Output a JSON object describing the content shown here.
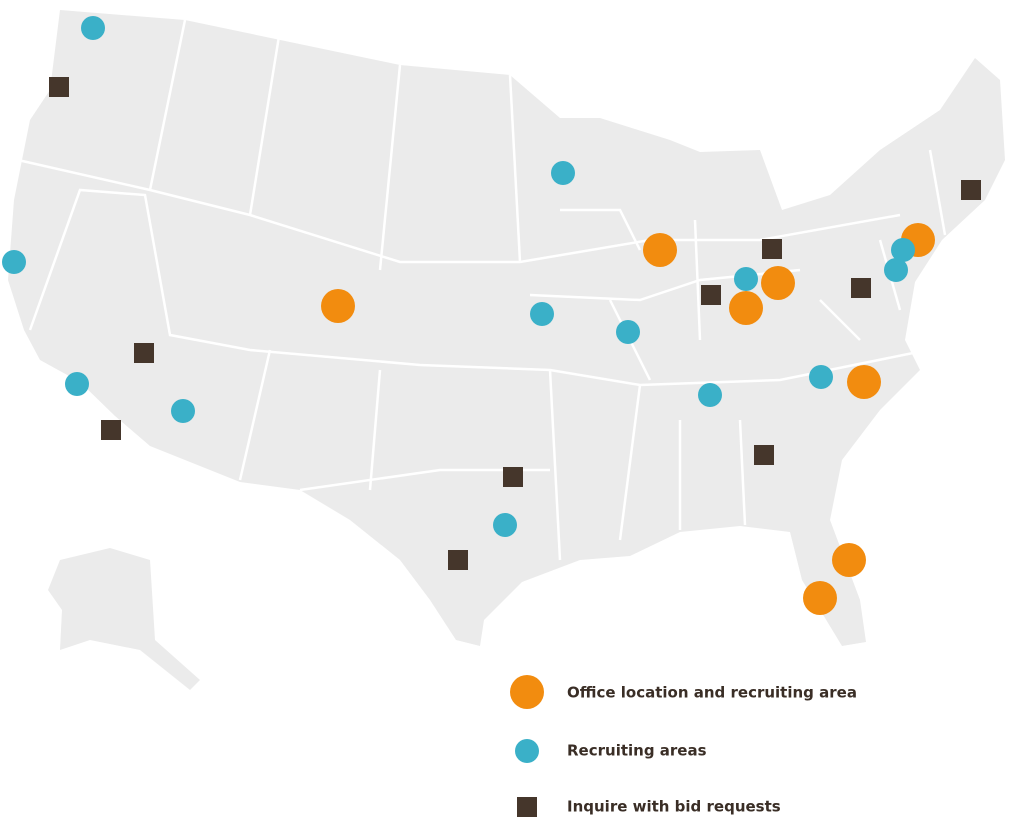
{
  "legend": {
    "items": [
      "Office location and recruiting area",
      "Recruiting areas",
      "Inquire with bid requests"
    ]
  }
}
